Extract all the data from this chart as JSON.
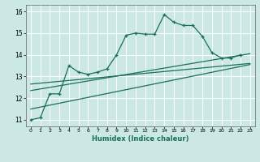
{
  "xlabel": "Humidex (Indice chaleur)",
  "bg_color": "#cce8e4",
  "grid_color": "#ffffff",
  "line_color": "#1a6e5e",
  "xlim": [
    -0.5,
    23.5
  ],
  "ylim": [
    10.7,
    16.3
  ],
  "xticks": [
    0,
    1,
    2,
    3,
    4,
    5,
    6,
    7,
    8,
    9,
    10,
    11,
    12,
    13,
    14,
    15,
    16,
    17,
    18,
    19,
    20,
    21,
    22,
    23
  ],
  "yticks": [
    11,
    12,
    13,
    14,
    15,
    16
  ],
  "line1_x": [
    0,
    1,
    2,
    3,
    4,
    5,
    6,
    7,
    8,
    9,
    10,
    11,
    12,
    13,
    14,
    15,
    16,
    17,
    18,
    19,
    20,
    21,
    22
  ],
  "line1_y": [
    11.0,
    11.1,
    12.2,
    12.2,
    13.5,
    13.2,
    13.1,
    13.2,
    13.35,
    14.0,
    14.9,
    15.0,
    14.95,
    14.95,
    15.85,
    15.5,
    15.35,
    15.35,
    14.85,
    14.1,
    13.85,
    13.85,
    14.0
  ],
  "line2_x": [
    0,
    23
  ],
  "line2_y": [
    11.5,
    13.55
  ],
  "line3_x": [
    0,
    23
  ],
  "line3_y": [
    12.35,
    14.05
  ],
  "line4_x": [
    0,
    23
  ],
  "line4_y": [
    12.65,
    13.6
  ],
  "linewidth": 0.9,
  "marker_size": 3.5
}
